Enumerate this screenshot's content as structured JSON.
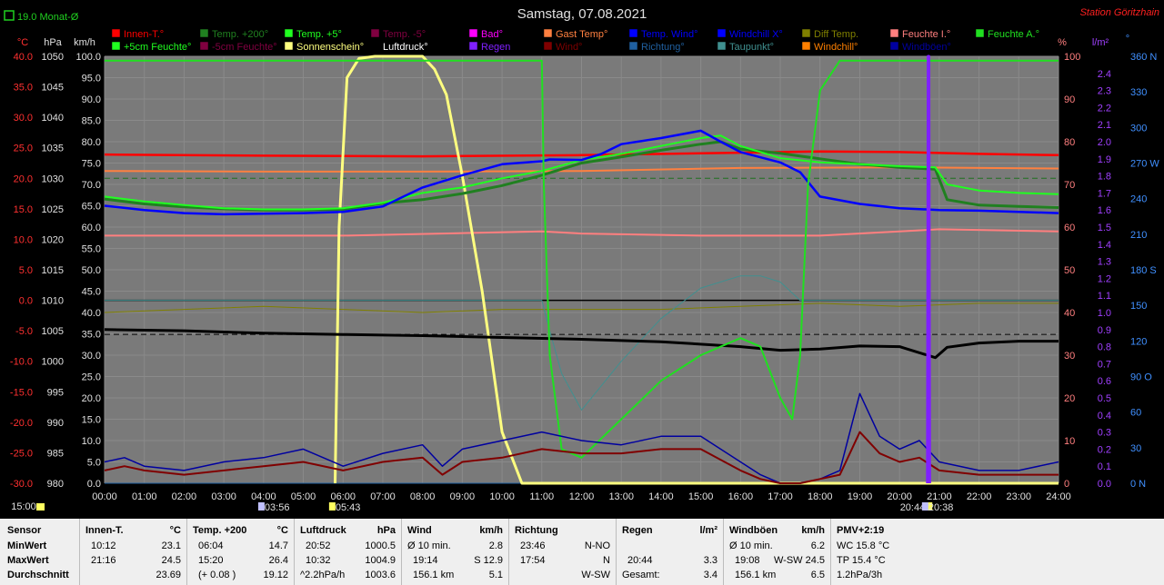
{
  "header": {
    "title": "Samstag, 07.08.2021",
    "station": "Station Göritzhain",
    "monthly_avg": "19.0 Monat-Ø"
  },
  "colors": {
    "plot_bg": "#7a7a7a",
    "innen": "#ff0000",
    "temp200": "#208020",
    "temp5": "#20ff20",
    "feuchteA": "#20e020",
    "feuchteI": "#ff7f7f",
    "luftdruck": "#000000",
    "sonne": "#ffff80",
    "regen": "#8020ff",
    "wind": "#800000",
    "windboen": "#0000a0",
    "wind_temp": "#0000ff",
    "richtung": "#2060a0",
    "taupunkt": "#409090",
    "diff": "#808000",
    "gast": "#ff8040",
    "bad": "#ff00ff",
    "windchill": "#ff8000"
  },
  "legend": [
    {
      "label": "Innen-T.°",
      "color": "#ff0000"
    },
    {
      "label": "Temp. +200°",
      "color": "#208020"
    },
    {
      "label": "Temp. +5°",
      "color": "#20ff20"
    },
    {
      "label": "Temp. -5°",
      "color": "#800040"
    },
    {
      "label": "Bad°",
      "color": "#ff00ff"
    },
    {
      "label": "Gast Temp°",
      "color": "#ff8040"
    },
    {
      "label": "Temp. Wind°",
      "color": "#0000ff"
    },
    {
      "label": "Windchill X°",
      "color": "#0000ff"
    },
    {
      "label": "Diff Temp.",
      "color": "#808000"
    },
    {
      "label": "Feuchte I.°",
      "color": "#ff7f7f"
    },
    {
      "label": "Feuchte A.°",
      "color": "#20e020"
    },
    {
      "label": "+5cm Feuchte°",
      "color": "#20ff20"
    },
    {
      "label": "-5cm Feuchte°",
      "color": "#800040"
    },
    {
      "label": "Sonnenschein°",
      "color": "#ffff80"
    },
    {
      "label": "Luftdruck°",
      "color": "#000000"
    },
    {
      "label": "Regen",
      "color": "#8020ff"
    },
    {
      "label": "Wind°",
      "color": "#800000"
    },
    {
      "label": "Richtung°",
      "color": "#2060a0"
    },
    {
      "label": "Taupunkt°",
      "color": "#409090"
    },
    {
      "label": "Windchill°",
      "color": "#ff8000"
    },
    {
      "label": "Windböen°",
      "color": "#0000a0"
    }
  ],
  "chart_data": {
    "type": "line",
    "title": "Samstag, 07.08.2021",
    "x_range": [
      "00:00",
      "24:00"
    ],
    "x_ticks": [
      "00:00",
      "01:00",
      "02:00",
      "03:00",
      "04:00",
      "05:00",
      "06:00",
      "07:00",
      "08:00",
      "09:00",
      "10:00",
      "11:00",
      "12:00",
      "13:00",
      "14:00",
      "15:00",
      "16:00",
      "17:00",
      "18:00",
      "19:00",
      "20:00",
      "21:00",
      "22:00",
      "23:00",
      "24:00"
    ],
    "axes": {
      "temp_c": {
        "label": "°C",
        "min": -30,
        "max": 40,
        "ticks": [
          "40.0",
          "35.0",
          "30.0",
          "25.0",
          "20.0",
          "15.0",
          "10.0",
          "5.0",
          "0.0",
          "-5.0",
          "-10.0",
          "-15.0",
          "-20.0",
          "-25.0",
          "-30.0"
        ]
      },
      "pressure_hpa": {
        "label": "hPa",
        "min": 980,
        "max": 1050,
        "ticks": [
          "1050",
          "1045",
          "1040",
          "1035",
          "1030",
          "1025",
          "1020",
          "1015",
          "1010",
          "1005",
          "1000",
          "995",
          "990",
          "985",
          "980"
        ]
      },
      "wind_kmh": {
        "label": "km/h",
        "min": 0,
        "max": 100,
        "ticks": [
          "100.0",
          "95.0",
          "90.0",
          "85.0",
          "80.0",
          "75.0",
          "70.0",
          "65.0",
          "60.0",
          "55.0",
          "50.0",
          "45.0",
          "40.0",
          "35.0",
          "30.0",
          "25.0",
          "20.0",
          "15.0",
          "10.0",
          "5.0",
          "0.0"
        ]
      },
      "humidity_pct": {
        "label": "%",
        "min": 0,
        "max": 100,
        "ticks": [
          "100",
          "90",
          "80",
          "70",
          "60",
          "50",
          "40",
          "30",
          "20",
          "10",
          "0"
        ]
      },
      "rain_lm2": {
        "label": "l/m²",
        "min": 0,
        "max": 2.5,
        "ticks": [
          "2.4",
          "2.3",
          "2.2",
          "2.1",
          "2.0",
          "1.9",
          "1.8",
          "1.7",
          "1.6",
          "1.5",
          "1.4",
          "1.3",
          "1.2",
          "1.1",
          "1.0",
          "0.9",
          "0.8",
          "0.7",
          "0.6",
          "0.5",
          "0.4",
          "0.3",
          "0.2",
          "0.1",
          "0.0"
        ]
      },
      "direction_deg": {
        "label": "°",
        "min": 0,
        "max": 360,
        "ticks": [
          "360 N",
          "330",
          "300",
          "270 W",
          "240",
          "210",
          "180 S",
          "150",
          "120",
          "90 O",
          "60",
          "30",
          "0 N"
        ]
      }
    },
    "markers": {
      "sunrise": "05:43",
      "sunset": "20:44",
      "moonrise": "03:56",
      "moonset": "20:38"
    },
    "series": [
      {
        "name": "Innen-T.",
        "axis": "temp_c",
        "x": [
          0,
          4,
          8,
          12,
          16,
          18,
          20,
          22,
          24
        ],
        "y": [
          23.9,
          23.7,
          23.6,
          23.8,
          24.2,
          24.4,
          24.3,
          24.0,
          23.8
        ]
      },
      {
        "name": "Feuchte I.",
        "axis": "humidity_pct",
        "x": [
          0,
          6,
          11,
          12,
          15,
          18,
          20,
          21,
          24
        ],
        "y": [
          58,
          58,
          59,
          58.5,
          58,
          58,
          59,
          59.5,
          59
        ]
      },
      {
        "name": "Temp. +200",
        "axis": "temp_c",
        "x": [
          0,
          1,
          2,
          3,
          4,
          5,
          6,
          7,
          8,
          9,
          10,
          11,
          12,
          13,
          14,
          15,
          15.5,
          16,
          17,
          18,
          19,
          20,
          20.9,
          21.2,
          22,
          23,
          24
        ],
        "y": [
          16.6,
          15.8,
          15.3,
          15.0,
          14.8,
          14.8,
          14.9,
          15.9,
          16.5,
          17.5,
          18.8,
          20.5,
          22.5,
          23.5,
          24.6,
          25.6,
          26.0,
          24.8,
          24.1,
          23.2,
          22.3,
          21.8,
          21.5,
          16.5,
          15.6,
          15.4,
          15.2
        ]
      },
      {
        "name": "Temp. Wind",
        "axis": "temp_c",
        "x": [
          0,
          1,
          2,
          3,
          4,
          5,
          6,
          7,
          8,
          9,
          10,
          11,
          11.2,
          12,
          12.5,
          13,
          14,
          15,
          15.5,
          16,
          17,
          17.5,
          18,
          19,
          20,
          21,
          22,
          23,
          24
        ],
        "y": [
          15.5,
          14.8,
          14.3,
          14.1,
          14.2,
          14.3,
          14.5,
          15.4,
          18.5,
          20.5,
          22.3,
          22.8,
          23.1,
          23.0,
          24.0,
          25.6,
          26.6,
          27.8,
          26.0,
          24.3,
          22.6,
          21.0,
          17.0,
          15.8,
          15.1,
          14.8,
          14.7,
          14.5,
          14.3
        ]
      },
      {
        "name": "Temp. +5",
        "axis": "temp_c",
        "x": [
          0,
          1,
          2,
          3,
          4,
          5,
          6,
          7,
          8,
          9,
          10,
          11,
          12,
          13,
          14,
          15,
          15.5,
          16,
          17,
          18,
          19,
          20,
          20.9,
          21.2,
          22,
          23,
          24
        ],
        "y": [
          17.0,
          16.2,
          15.6,
          15.1,
          14.9,
          14.9,
          15.1,
          16.0,
          17.6,
          18.5,
          20.0,
          21.2,
          23.0,
          24.0,
          25.3,
          26.6,
          27.0,
          25.3,
          23.3,
          22.6,
          22.3,
          22.0,
          21.8,
          19.0,
          18.0,
          17.6,
          17.4
        ]
      },
      {
        "name": "Feuchte A.",
        "axis": "humidity_pct",
        "x": [
          0,
          10.5,
          11.0,
          11.05,
          11.2,
          11.5,
          12,
          13,
          14,
          15,
          16,
          16.5,
          17,
          17.3,
          17.5,
          17.7,
          18,
          18.5,
          19,
          20,
          24
        ],
        "y": [
          99,
          99,
          99,
          70,
          30,
          8,
          6,
          15,
          24,
          30,
          34,
          32,
          20,
          15,
          30,
          70,
          92,
          99,
          99,
          99,
          99
        ]
      },
      {
        "name": "Luftdruck",
        "axis": "pressure_hpa",
        "x": [
          0,
          2,
          4,
          6,
          8,
          10,
          12,
          14,
          16,
          17,
          18,
          19,
          20,
          20.9,
          21.2,
          22,
          23,
          24
        ],
        "y": [
          1005.2,
          1005.0,
          1004.6,
          1004.4,
          1004.2,
          1003.9,
          1003.6,
          1003.2,
          1002.4,
          1001.8,
          1002.0,
          1002.5,
          1002.4,
          1000.6,
          1002.3,
          1003.0,
          1003.3,
          1003.3
        ]
      },
      {
        "name": "Sonnenschein",
        "axis": "wind_kmh",
        "x": [
          5.8,
          5.9,
          6.1,
          6.4,
          6.8,
          7.2,
          8.0,
          8.3,
          8.6,
          9.0,
          9.5,
          10.0,
          10.5,
          24
        ],
        "y": [
          0,
          60,
          95,
          99.5,
          100,
          100,
          100,
          97,
          91,
          72,
          45,
          12,
          0,
          0
        ]
      },
      {
        "name": "Regen",
        "axis": "rain_lm2",
        "x": [
          20.7,
          20.72,
          20.74,
          20.76
        ],
        "y": [
          0,
          2.5,
          2.5,
          0
        ]
      },
      {
        "name": "Windböen",
        "axis": "wind_kmh",
        "x": [
          0,
          0.5,
          1,
          2,
          3,
          4,
          5,
          6,
          7,
          8,
          8.5,
          9,
          10,
          11,
          12,
          13,
          14,
          15,
          16,
          16.5,
          17,
          17.5,
          18,
          18.5,
          19,
          19.5,
          20,
          20.5,
          21,
          22,
          23,
          24
        ],
        "y": [
          5,
          6,
          4,
          3,
          5,
          6,
          8,
          4,
          7,
          9,
          4,
          8,
          10,
          12,
          10,
          9,
          11,
          11,
          5,
          2,
          0,
          0,
          1,
          3,
          21,
          11,
          8,
          10,
          5,
          3,
          3,
          5
        ]
      },
      {
        "name": "Wind",
        "axis": "wind_kmh",
        "x": [
          0,
          0.5,
          1,
          2,
          3,
          4,
          5,
          6,
          7,
          8,
          8.5,
          9,
          10,
          11,
          12,
          13,
          14,
          15,
          16,
          16.5,
          17,
          17.5,
          18,
          18.5,
          19,
          19.5,
          20,
          20.5,
          21,
          22,
          23,
          24
        ],
        "y": [
          3,
          4,
          3,
          2,
          3,
          4,
          5,
          3,
          5,
          6,
          2,
          5,
          6,
          8,
          7,
          7,
          8,
          8,
          3,
          1,
          0,
          0,
          1,
          2,
          12,
          7,
          5,
          6,
          3,
          2,
          2,
          2
        ]
      },
      {
        "name": "Richtung",
        "axis": "direction_deg",
        "x": [
          0,
          4,
          8,
          10,
          11,
          12,
          14,
          16,
          18,
          20,
          22,
          24
        ],
        "y": [
          0,
          0,
          0,
          0,
          0,
          0,
          0,
          0,
          0,
          0,
          0,
          0
        ]
      },
      {
        "name": "Taupunkt",
        "axis": "temp_c",
        "x": [
          0,
          4,
          8,
          10,
          11,
          11.2,
          11.5,
          12,
          13,
          14,
          15,
          16,
          16.5,
          17,
          17.5,
          24
        ],
        "y": [
          0,
          0,
          0,
          0,
          0,
          -5,
          -12,
          -18,
          -10,
          -3,
          2,
          4,
          4,
          3,
          0,
          0
        ]
      },
      {
        "name": "Diff Temp.",
        "axis": "temp_c",
        "x": [
          0,
          2,
          4,
          6,
          8,
          10,
          12,
          14,
          16,
          18,
          20,
          22,
          24
        ],
        "y": [
          -2,
          -1.5,
          -1.0,
          -1.5,
          -2,
          -1.5,
          -1.5,
          -1.5,
          -1.0,
          -0.5,
          -1.0,
          -0.5,
          -0.5
        ]
      },
      {
        "name": "Gast Temp",
        "axis": "temp_c",
        "x": [
          0,
          4,
          8,
          12,
          16,
          20,
          24
        ],
        "y": [
          21.2,
          21.1,
          21.1,
          21.2,
          21.7,
          21.8,
          21.6
        ]
      }
    ]
  },
  "stats": {
    "sensor": {
      "title": "Sensor",
      "rows": [
        "MinWert",
        "MaxWert",
        "Durchschnitt"
      ]
    },
    "innen": {
      "title": "Innen-T.",
      "unit": "°C",
      "min_time": "10:12",
      "min_val": "23.1",
      "max_time": "21:16",
      "max_val": "24.5",
      "avg_val": "23.69"
    },
    "temp": {
      "title": "Temp. +200",
      "unit": "°C",
      "min_time": "06:04",
      "min_val": "14.7",
      "max_time": "15:20",
      "max_val": "26.4",
      "avg_extra": "(+ 0.08 )",
      "avg_val": "19.12"
    },
    "druck": {
      "title": "Luftdruck",
      "unit": "hPa",
      "min_time": "20:52",
      "min_val": "1000.5",
      "max_time": "10:32",
      "max_val": "1004.9",
      "avg_extra": "^2.2hPa/h",
      "avg_val": "1003.6"
    },
    "wind": {
      "title": "Wind",
      "unit": "km/h",
      "r1_label": "Ø 10 min.",
      "r1_val": "2.8",
      "r2_label": "19:14",
      "r2_val": "S 12.9",
      "r3_label": "156.1 km",
      "r3_val": "5.1"
    },
    "richtung": {
      "title": "Richtung",
      "r1_label": "23:46",
      "r1_val": "N-NO",
      "r2_label": "17:54",
      "r2_val": "N",
      "r3_val": "W-SW"
    },
    "regen": {
      "title": "Regen",
      "unit": "l/m²",
      "r2_label": "20:44",
      "r2_val": "3.3",
      "r3_label": "Gesamt:",
      "r3_val": "3.4"
    },
    "boeen": {
      "title": "Windböen",
      "unit": "km/h",
      "r1_label": "Ø 10 min.",
      "r1_val": "6.2",
      "r2_label": "19:08",
      "r2_val": "W-SW 24.5",
      "r3_label": "156.1 km",
      "r3_val": "6.5"
    },
    "pmv": {
      "title": "PMV+2:19",
      "r1": "WC 15.8 °C",
      "r2": "TP 15.4 °C",
      "r3": "1.2hPa/3h"
    }
  }
}
